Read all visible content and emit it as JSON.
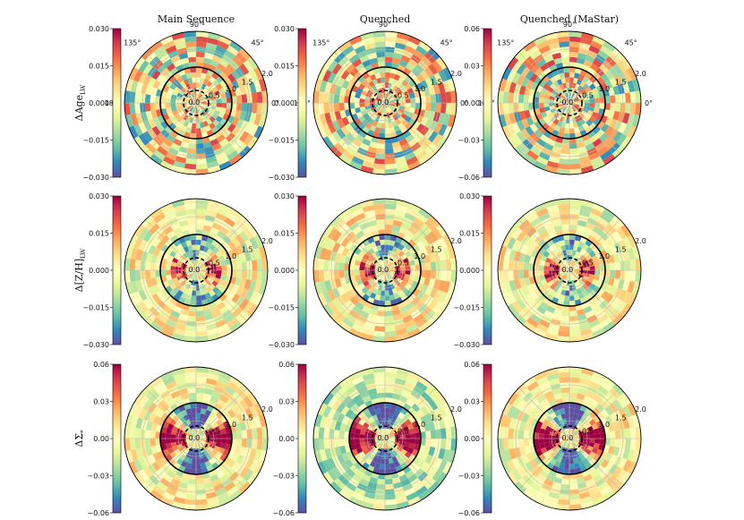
{
  "chart_data": {
    "type": "heatmap",
    "projection": "polar",
    "colormap": "Spectral_r",
    "column_titles": [
      "Main Sequence",
      "Quenched",
      "Quenched (MaStar)"
    ],
    "rows": [
      {
        "label_main": "ΔAge",
        "label_sub": "LW",
        "colorbar_ticks": [
          [
            "0.030",
            "0.015",
            "0.000",
            "−0.015",
            "−0.030"
          ],
          [
            "0.030",
            "0.015",
            "0.000",
            "−0.015",
            "−0.030"
          ],
          [
            "0.06",
            "0.03",
            "0.00",
            "−0.03",
            "−0.06"
          ]
        ],
        "vlim": [
          [
            -0.03,
            0.03
          ],
          [
            -0.03,
            0.03
          ],
          [
            -0.06,
            0.06
          ]
        ],
        "show_angle_labels": true
      },
      {
        "label_main": "Δ[Z/H]",
        "label_sub": "LW",
        "colorbar_ticks": [
          [
            "0.030",
            "0.015",
            "0.000",
            "−0.015",
            "−0.030"
          ],
          [
            "0.030",
            "0.015",
            "0.000",
            "−0.015",
            "−0.030"
          ],
          [
            "0.030",
            "0.015",
            "0.000",
            "−0.015",
            "−0.030"
          ]
        ],
        "vlim": [
          [
            -0.03,
            0.03
          ],
          [
            -0.03,
            0.03
          ],
          [
            -0.03,
            0.03
          ]
        ],
        "show_angle_labels": false
      },
      {
        "label_main": "ΔΣ",
        "label_sub": "*",
        "colorbar_ticks": [
          [
            "0.06",
            "0.03",
            "0.00",
            "−0.03",
            "−0.06"
          ],
          [
            "0.06",
            "0.03",
            "0.00",
            "−0.03",
            "−0.06"
          ],
          [
            "0.06",
            "0.03",
            "0.00",
            "−0.03",
            "−0.06"
          ]
        ],
        "vlim": [
          [
            -0.06,
            0.06
          ],
          [
            -0.06,
            0.06
          ],
          [
            -0.06,
            0.06
          ]
        ],
        "show_angle_labels": false
      }
    ],
    "angle_labels": [
      "90°",
      "45°",
      "0°",
      "135°",
      "180°"
    ],
    "radial_ticks": [
      "0.0",
      "0.5",
      "1.0",
      "1.5",
      "2.0"
    ],
    "rmax": 2.0,
    "solid_circle_r": 1.0,
    "dashed_circle_r": 0.35
  }
}
